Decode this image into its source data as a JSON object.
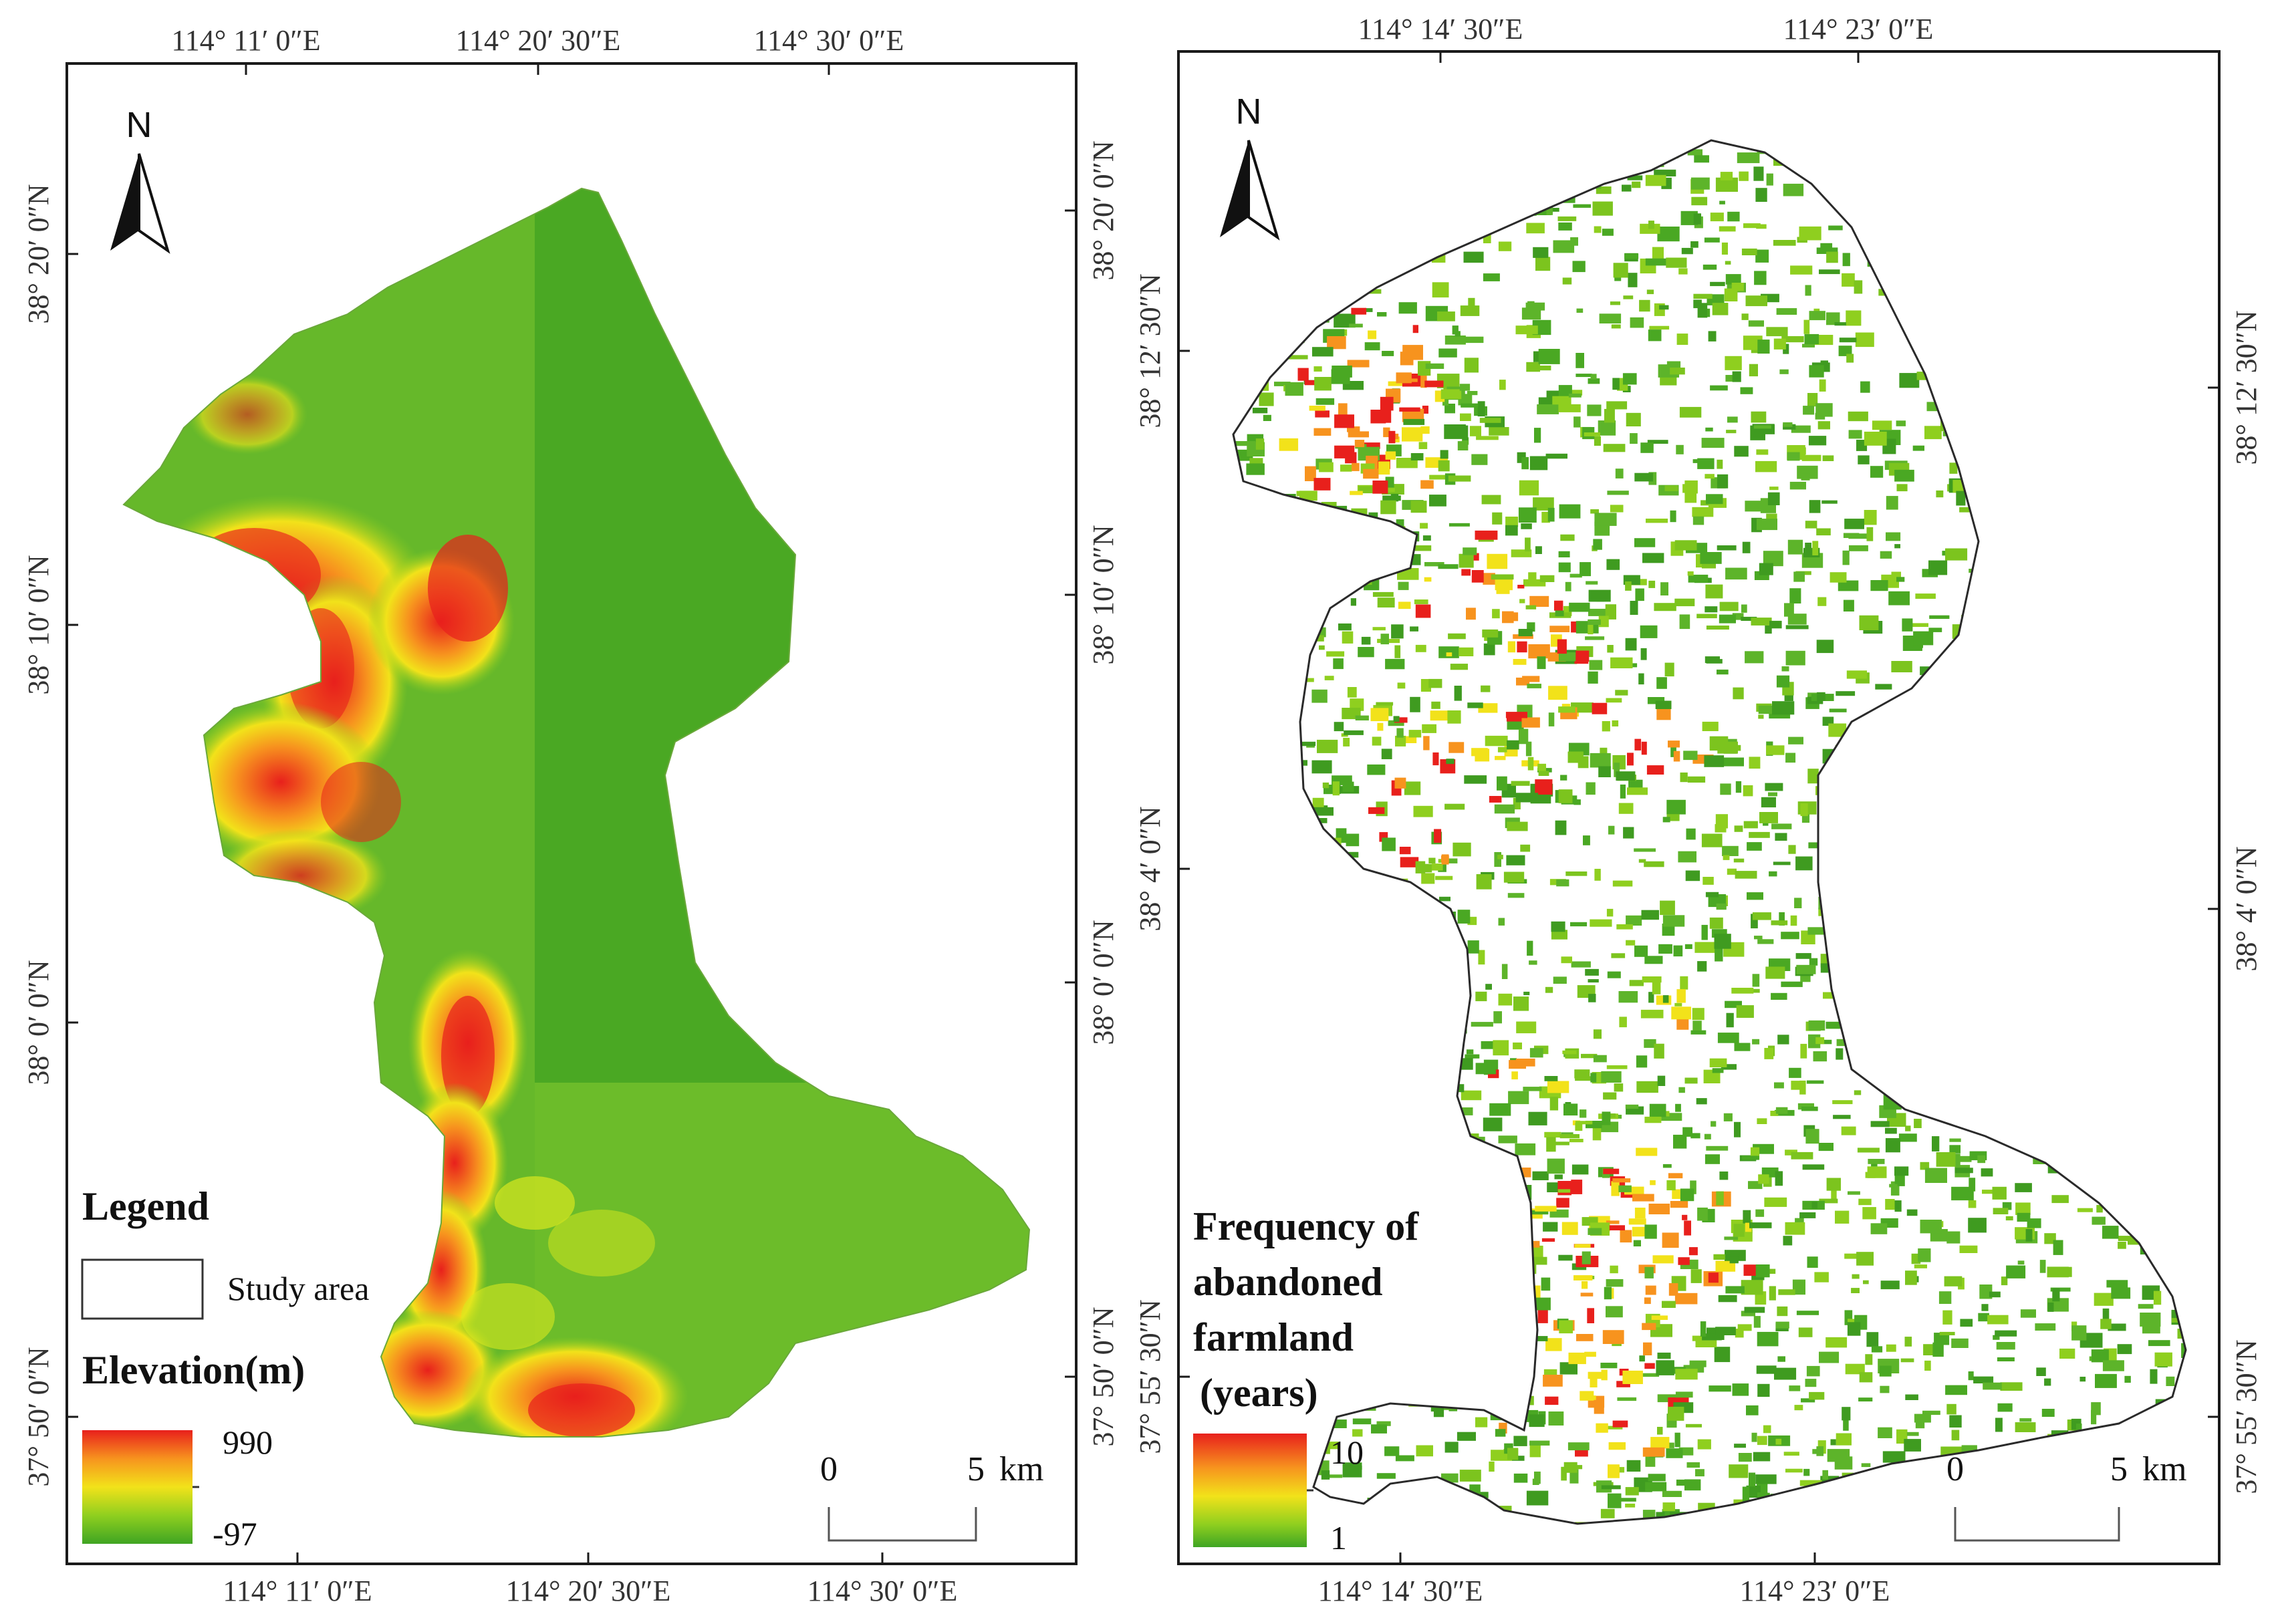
{
  "colors": {
    "lowland_green": "#4aa823",
    "mid_green": "#7cc41e",
    "yellow": "#f2e21a",
    "orange": "#f7931e",
    "red": "#e8201c",
    "boundary": "#2a2a2a",
    "frame": "#1a1a1a"
  },
  "left_map": {
    "top_ticks": [
      "114°  11′ 0″E",
      "114°  20′ 30″E",
      "114°  30′ 0″E"
    ],
    "bottom_ticks": [
      "114°  11′ 0″E",
      "114°  20′ 30″E",
      "114°  30′ 0″E"
    ],
    "left_ticks": [
      "38°  20′ 0″N",
      "38°  10′ 0″N",
      "38°  0′ 0″N",
      "37°  50′ 0″N"
    ],
    "right_ticks": [
      "38°  20′ 0″N",
      "38°  10′ 0″N",
      "38°  0′ 0″N",
      "37°  50′ 0″N"
    ],
    "north_label": "N",
    "legend": {
      "title": "Legend",
      "study_area": "Study area",
      "elevation_title": "Elevation(m)",
      "max": "990",
      "min": "-97"
    },
    "scalebar": {
      "start": "0",
      "end": "5",
      "unit": "km"
    }
  },
  "right_map": {
    "top_ticks": [
      "114°  14′ 30″E",
      "114°  23′ 0″E"
    ],
    "bottom_ticks": [
      "114°  14′ 30″E",
      "114°  23′ 0″E"
    ],
    "left_ticks": [
      "38°  12′ 30″N",
      "38°  4′ 0″N",
      "37°  55′ 30″N"
    ],
    "right_ticks": [
      "38°  12′ 30″N",
      "38°  4′ 0″N",
      "37°  55′ 30″N"
    ],
    "north_label": "N",
    "legend": {
      "title_lines": [
        "Frequency of",
        "abandoned",
        "farmland",
        "(years)"
      ],
      "max": "10",
      "min": "1"
    },
    "scalebar": {
      "start": "0",
      "end": "5",
      "unit": "km"
    }
  }
}
